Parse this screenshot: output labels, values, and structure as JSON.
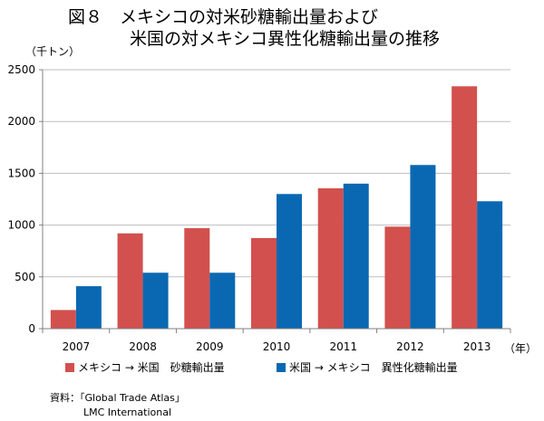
{
  "title": {
    "line1": "図８　メキシコの対米砂糖輸出量および",
    "line2": "米国の対メキシコ異性化糖輸出量の推移"
  },
  "colors": {
    "series1": "#d2504d",
    "series2": "#0a68b2",
    "grid": "#bfbfbf",
    "axis": "#808080"
  },
  "chart_data": {
    "type": "bar",
    "categories": [
      "2007",
      "2008",
      "2009",
      "2010",
      "2011",
      "2012",
      "2013"
    ],
    "series": [
      {
        "name": "メキシコ → 米国　砂糖輸出量",
        "values": [
          180,
          920,
          970,
          875,
          1355,
          985,
          2340
        ]
      },
      {
        "name": "米国 → メキシコ　異性化糖輸出量",
        "values": [
          410,
          540,
          540,
          1300,
          1400,
          1580,
          1230
        ]
      }
    ],
    "ylim": [
      0,
      2500
    ],
    "yticks": [
      0,
      500,
      1000,
      1500,
      2000,
      2500
    ],
    "ylabel": "（千トン）",
    "xlabel": "（年）",
    "grid": true,
    "legend_position": "bottom"
  },
  "source": {
    "line1": "資料：「Global Trade Atlas」",
    "line2": "LMC International"
  }
}
